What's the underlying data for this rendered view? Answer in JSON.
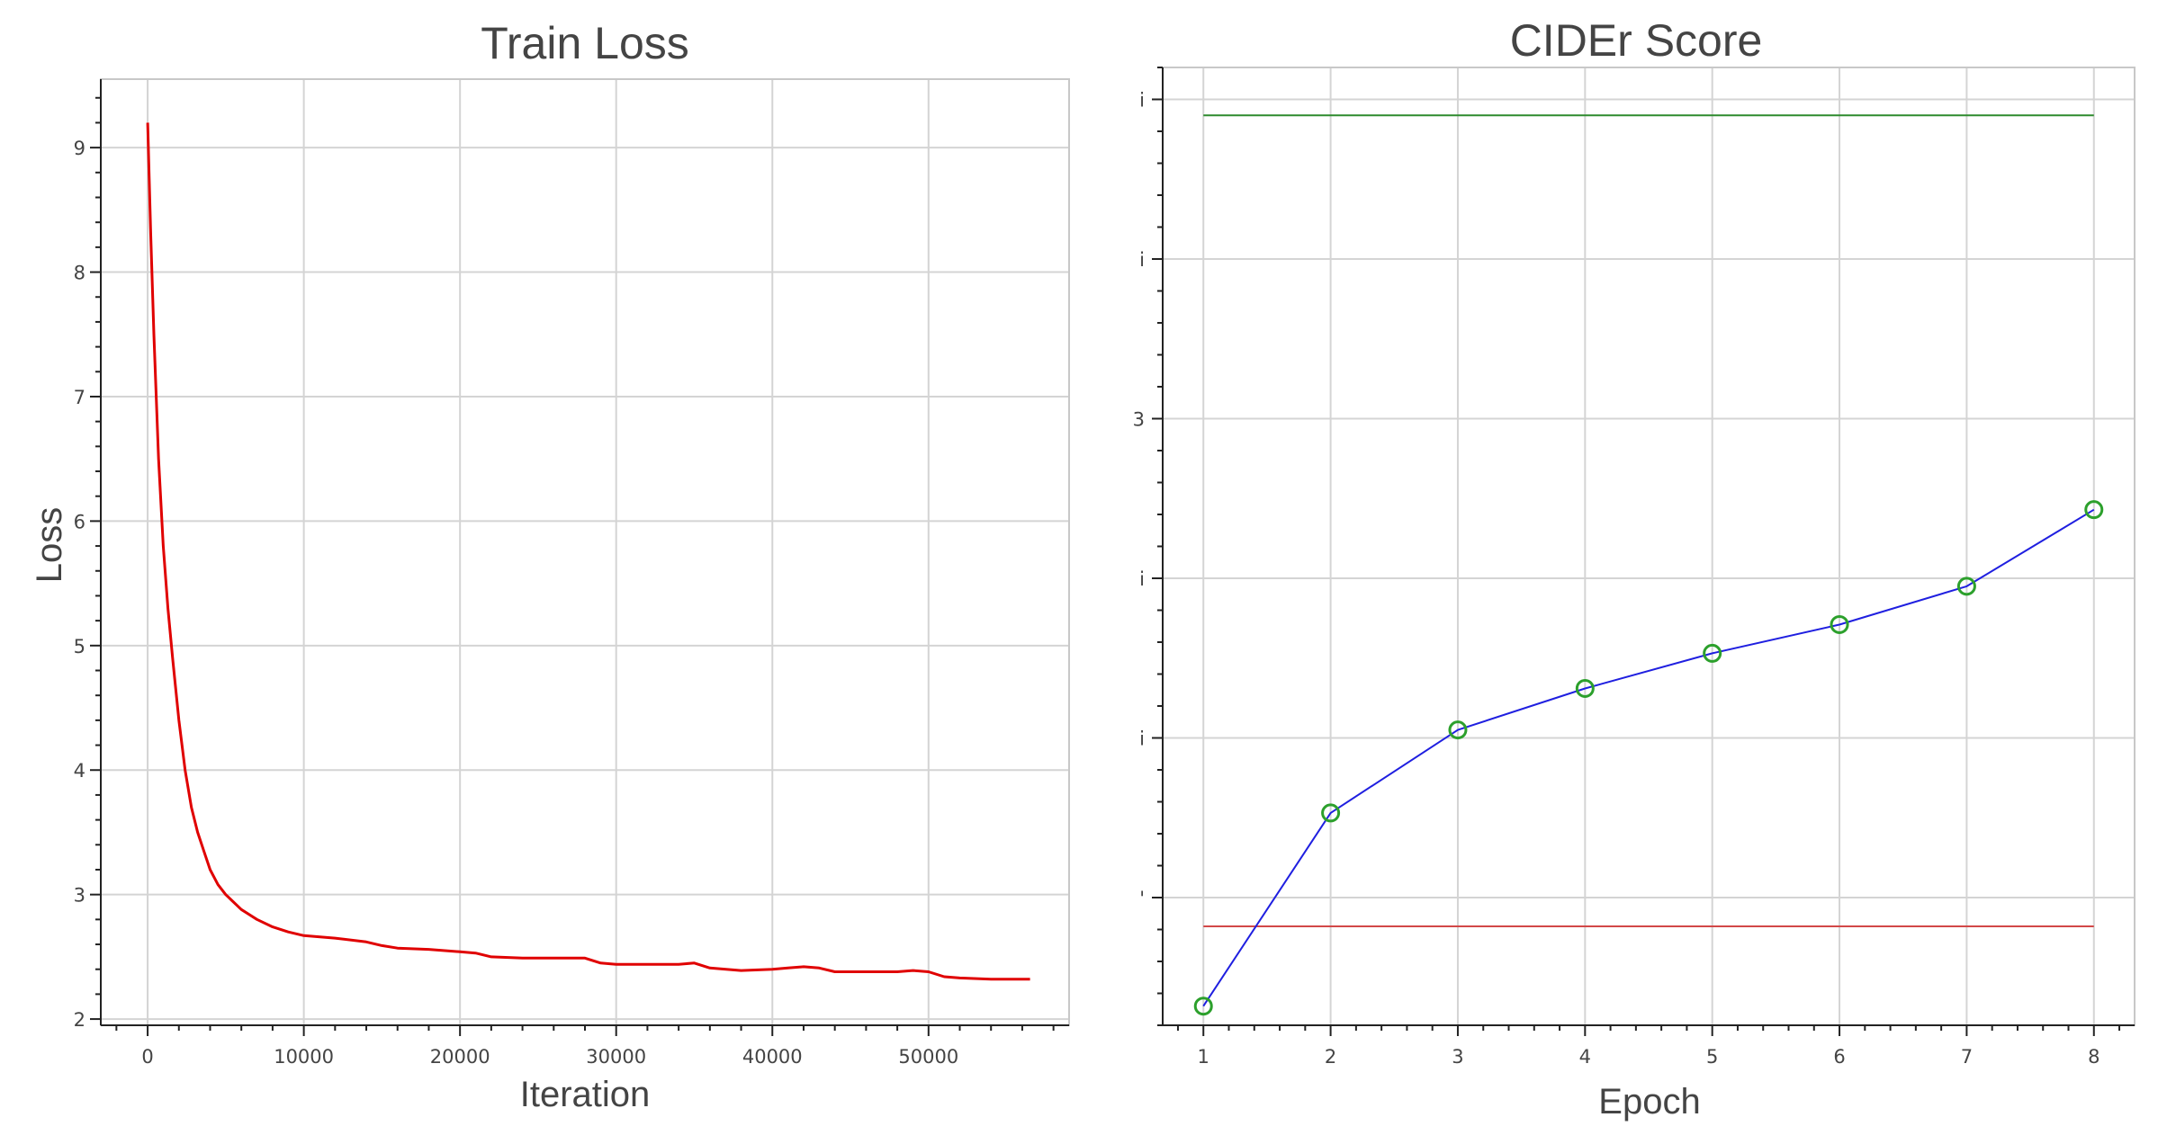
{
  "chart_data": [
    {
      "type": "line",
      "title": "Train Loss",
      "xlabel": "Iteration",
      "ylabel": "Loss",
      "xlim": [
        -3000,
        59000
      ],
      "ylim": [
        1.95,
        9.55
      ],
      "xticks": [
        0,
        10000,
        20000,
        30000,
        40000,
        50000
      ],
      "xtick_labels": [
        "0",
        "10000",
        "20000",
        "30000",
        "40000",
        "50000"
      ],
      "yticks": [
        2,
        3,
        4,
        5,
        6,
        7,
        8,
        9
      ],
      "ytick_labels": [
        "2",
        "3",
        "4",
        "5",
        "6",
        "7",
        "8",
        "9"
      ],
      "grid": true,
      "line_color": "#e00000",
      "series": [
        {
          "x": [
            0,
            200,
            400,
            700,
            1000,
            1300,
            1600,
            2000,
            2400,
            2800,
            3200,
            3600,
            4000,
            4500,
            5000,
            6000,
            7000,
            8000,
            9000,
            10000,
            12000,
            14000,
            15000,
            16000,
            18000,
            20000,
            21000,
            22000,
            24000,
            26000,
            28000,
            29000,
            30000,
            32000,
            34000,
            35000,
            36000,
            38000,
            40000,
            41000,
            42000,
            43000,
            44000,
            46000,
            48000,
            49000,
            50000,
            51000,
            52000,
            54000,
            56500
          ],
          "y": [
            9.2,
            8.3,
            7.5,
            6.5,
            5.8,
            5.3,
            4.9,
            4.4,
            4.0,
            3.7,
            3.5,
            3.35,
            3.2,
            3.08,
            3.0,
            2.88,
            2.8,
            2.74,
            2.7,
            2.67,
            2.65,
            2.62,
            2.59,
            2.57,
            2.56,
            2.54,
            2.53,
            2.5,
            2.49,
            2.49,
            2.49,
            2.45,
            2.44,
            2.44,
            2.44,
            2.45,
            2.41,
            2.39,
            2.4,
            2.41,
            2.42,
            2.41,
            2.38,
            2.38,
            2.38,
            2.39,
            2.38,
            2.34,
            2.33,
            2.32,
            2.32
          ]
        }
      ]
    },
    {
      "type": "line",
      "title": "CIDEr Score",
      "xlabel": "Epoch",
      "ylabel": "",
      "xlim": [
        0.68,
        8.32
      ],
      "ylim": [
        0.0,
        6.0
      ],
      "xticks": [
        1,
        2,
        3,
        4,
        5,
        6,
        7,
        8
      ],
      "xtick_labels": [
        "1",
        "2",
        "3",
        "4",
        "5",
        "6",
        "7",
        "8"
      ],
      "yticks": [
        0.8,
        1.8,
        2.8,
        3.8,
        4.8,
        5.8
      ],
      "ytick_labels": [
        "'",
        "i",
        "i",
        "3",
        "i",
        "i"
      ],
      "grid": true,
      "reference_lines": [
        {
          "y": 5.7,
          "color": "#2e8b2e"
        },
        {
          "y": 0.62,
          "color": "#d24848"
        }
      ],
      "series": [
        {
          "x": [
            1,
            2,
            3,
            4,
            5,
            6,
            7,
            8
          ],
          "y": [
            0.12,
            1.33,
            1.85,
            2.11,
            2.33,
            2.51,
            2.75,
            3.23
          ],
          "line_color": "#1f1fe0",
          "marker_color": "#2ca02c"
        }
      ]
    }
  ]
}
